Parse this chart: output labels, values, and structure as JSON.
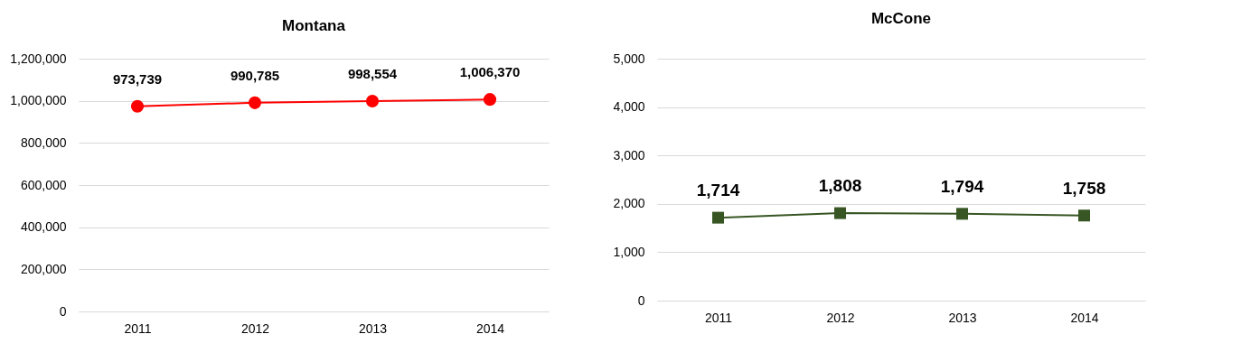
{
  "chart_data": [
    {
      "type": "line",
      "title": "Montana",
      "categories": [
        "2011",
        "2012",
        "2013",
        "2014"
      ],
      "series": [
        {
          "color": "#ff0000",
          "values": [
            973739,
            990785,
            998554,
            1006370
          ],
          "value_labels": [
            "973,739",
            "990,785",
            "998,554",
            "1,006,370"
          ]
        }
      ],
      "ylim": [
        0,
        1200000
      ],
      "yticks": [
        0,
        {
          "value": 200000,
          "label": "200,000"
        },
        {
          "value": 400000,
          "label": "400,000"
        },
        {
          "value": 600000,
          "label": "600,000"
        },
        {
          "value": 800000,
          "label": "800,000"
        },
        {
          "value": 1000000,
          "label": "1,000,000"
        },
        {
          "value": 1200000,
          "label": "1,200,000"
        }
      ],
      "grid": "y",
      "marker": "circle"
    },
    {
      "type": "line",
      "title": "McCone",
      "categories": [
        "2011",
        "2012",
        "2013",
        "2014"
      ],
      "series": [
        {
          "color": "#375623",
          "values": [
            1714,
            1808,
            1794,
            1758
          ],
          "value_labels": [
            "1,714",
            "1,808",
            "1,794",
            "1,758"
          ]
        }
      ],
      "ylim": [
        0,
        5000
      ],
      "yticks": [
        0,
        {
          "value": 1000,
          "label": "1,000"
        },
        {
          "value": 2000,
          "label": "2,000"
        },
        {
          "value": 3000,
          "label": "3,000"
        },
        {
          "value": 4000,
          "label": "4,000"
        },
        {
          "value": 5000,
          "label": "5,000"
        }
      ],
      "grid": "y",
      "marker": "square"
    }
  ]
}
